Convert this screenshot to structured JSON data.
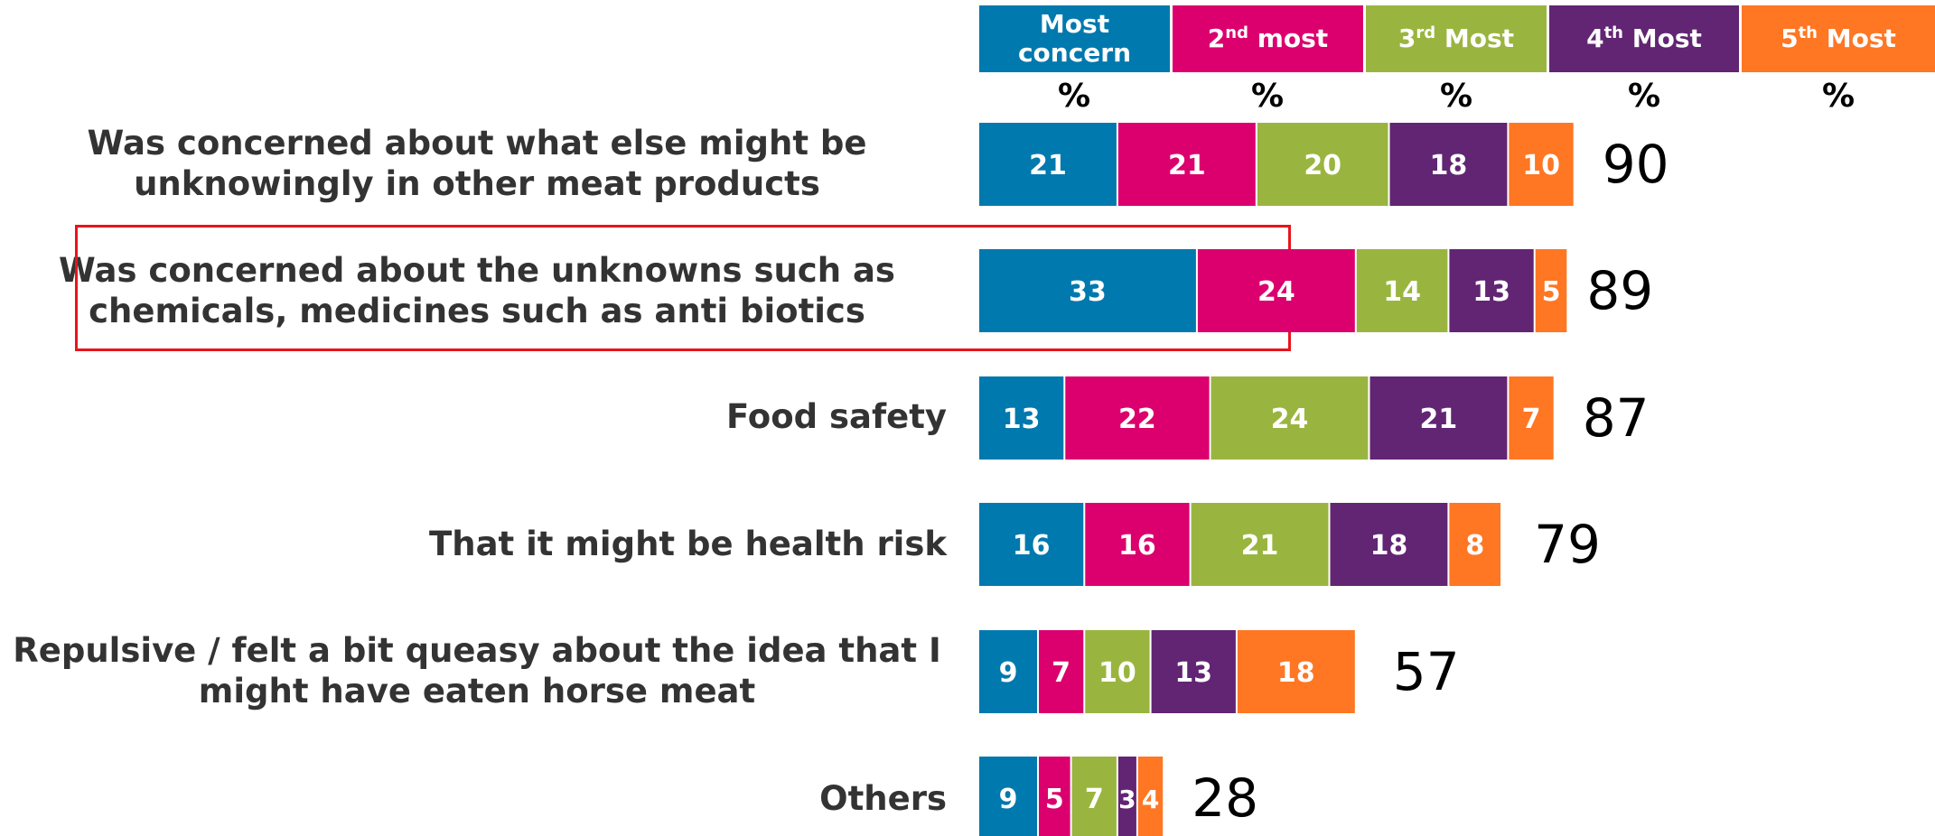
{
  "chart_data": {
    "type": "bar",
    "orientation": "horizontal",
    "stacked": true,
    "legend_position": "top",
    "series": [
      {
        "name": "Most concern",
        "color": "#0079AE",
        "values": [
          21,
          33,
          13,
          16,
          9,
          9
        ]
      },
      {
        "name": "2nd most",
        "color": "#DB006E",
        "values": [
          21,
          24,
          22,
          16,
          7,
          5
        ]
      },
      {
        "name": "3rd Most",
        "color": "#9AB53F",
        "values": [
          20,
          14,
          24,
          21,
          10,
          7
        ]
      },
      {
        "name": "4th Most",
        "color": "#612573",
        "values": [
          18,
          13,
          21,
          18,
          13,
          3
        ]
      },
      {
        "name": "5th Most",
        "color": "#FF7623",
        "values": [
          10,
          5,
          7,
          8,
          18,
          4
        ]
      }
    ],
    "categories": [
      "Was concerned about what else might be unknowingly in other meat products",
      "Was concerned about the unknowns such as chemicals, medicines such as anti biotics",
      "Food safety",
      "That it might be health risk",
      "Repulsive / felt a bit queasy about the idea that I might have eaten horse meat",
      "Others"
    ],
    "totals": [
      90,
      89,
      87,
      79,
      57,
      28
    ],
    "unit_label": "%",
    "highlighted_category_index": 1,
    "highlight_color": "#E8141C",
    "xlim": [
      0,
      100
    ]
  },
  "legend": {
    "most": {
      "text": "Most concern"
    },
    "second": {
      "pre": "2",
      "sup": "nd",
      "post": " most"
    },
    "third": {
      "pre": "3",
      "sup": "rd",
      "post": " Most"
    },
    "fourth": {
      "pre": "4",
      "sup": "th",
      "post": " Most"
    },
    "fifth": {
      "pre": "5",
      "sup": "th",
      "post": " Most"
    }
  },
  "labels": {
    "row0_line1": "Was concerned about what else might be",
    "row0_line2": "unknowingly in other meat products",
    "row1_line1": "Was concerned about the unknowns such as",
    "row1_line2": "chemicals, medicines such as anti biotics",
    "row2": "Food safety",
    "row3": "That it might be health risk",
    "row4_line1": "Repulsive / felt a bit queasy about the idea that I",
    "row4_line2": "might have eaten horse meat",
    "row5": "Others"
  }
}
